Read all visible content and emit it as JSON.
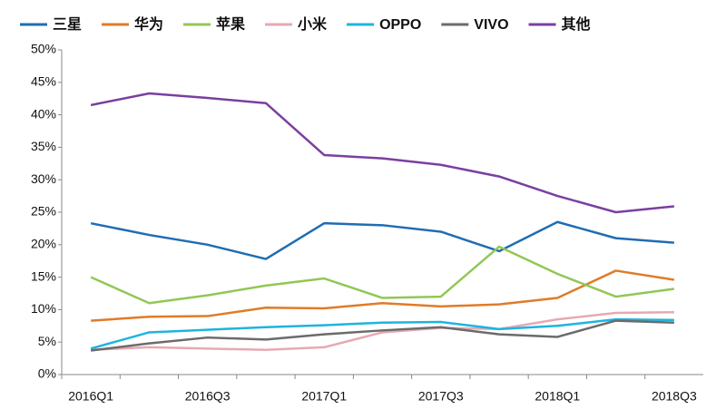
{
  "chart_data": {
    "type": "line",
    "categories": [
      "2016Q1",
      null,
      "2016Q3",
      null,
      "2017Q1",
      null,
      "2017Q3",
      null,
      "2018Q1",
      null,
      "2018Q3"
    ],
    "series": [
      {
        "name": "三星",
        "color": "#1f6db3",
        "values": [
          23.3,
          21.5,
          20,
          17.8,
          23.3,
          23,
          22,
          19,
          23.5,
          21,
          20.3
        ]
      },
      {
        "name": "华为",
        "color": "#e07b28",
        "values": [
          8.3,
          8.9,
          9,
          10.3,
          10.2,
          11,
          10.5,
          10.8,
          11.8,
          16,
          14.6
        ]
      },
      {
        "name": "苹果",
        "color": "#92c755",
        "values": [
          15,
          11,
          12.2,
          13.7,
          14.8,
          11.8,
          12,
          19.7,
          15.5,
          12,
          13.2
        ]
      },
      {
        "name": "小米",
        "color": "#e6a9b4",
        "values": [
          3.8,
          4.2,
          4,
          3.8,
          4.2,
          6.5,
          7.2,
          7,
          8.5,
          9.5,
          9.6
        ]
      },
      {
        "name": "OPPO",
        "color": "#1fb3e0",
        "values": [
          4,
          6.5,
          6.9,
          7.3,
          7.6,
          8,
          8.1,
          7,
          7.5,
          8.5,
          8.4
        ]
      },
      {
        "name": "VIVO",
        "color": "#6b6b6b",
        "values": [
          3.7,
          4.8,
          5.7,
          5.4,
          6.2,
          6.8,
          7.3,
          6.2,
          5.8,
          8.3,
          8
        ]
      },
      {
        "name": "其他",
        "color": "#7a3fa0",
        "values": [
          41.5,
          43.3,
          42.6,
          41.8,
          33.8,
          33.3,
          32.3,
          30.5,
          27.5,
          25,
          25.9
        ]
      }
    ],
    "ylim": [
      0,
      50
    ],
    "yticks": [
      {
        "value": 0,
        "label": "0%"
      },
      {
        "value": 5,
        "label": "5%"
      },
      {
        "value": 10,
        "label": "10%"
      },
      {
        "value": 15,
        "label": "15%"
      },
      {
        "value": 20,
        "label": "20%"
      },
      {
        "value": 25,
        "label": "25%"
      },
      {
        "value": 30,
        "label": "30%"
      },
      {
        "value": 35,
        "label": "35%"
      },
      {
        "value": 40,
        "label": "40%"
      },
      {
        "value": 45,
        "label": "45%"
      },
      {
        "value": 50,
        "label": "50%"
      }
    ],
    "legend": "top"
  }
}
